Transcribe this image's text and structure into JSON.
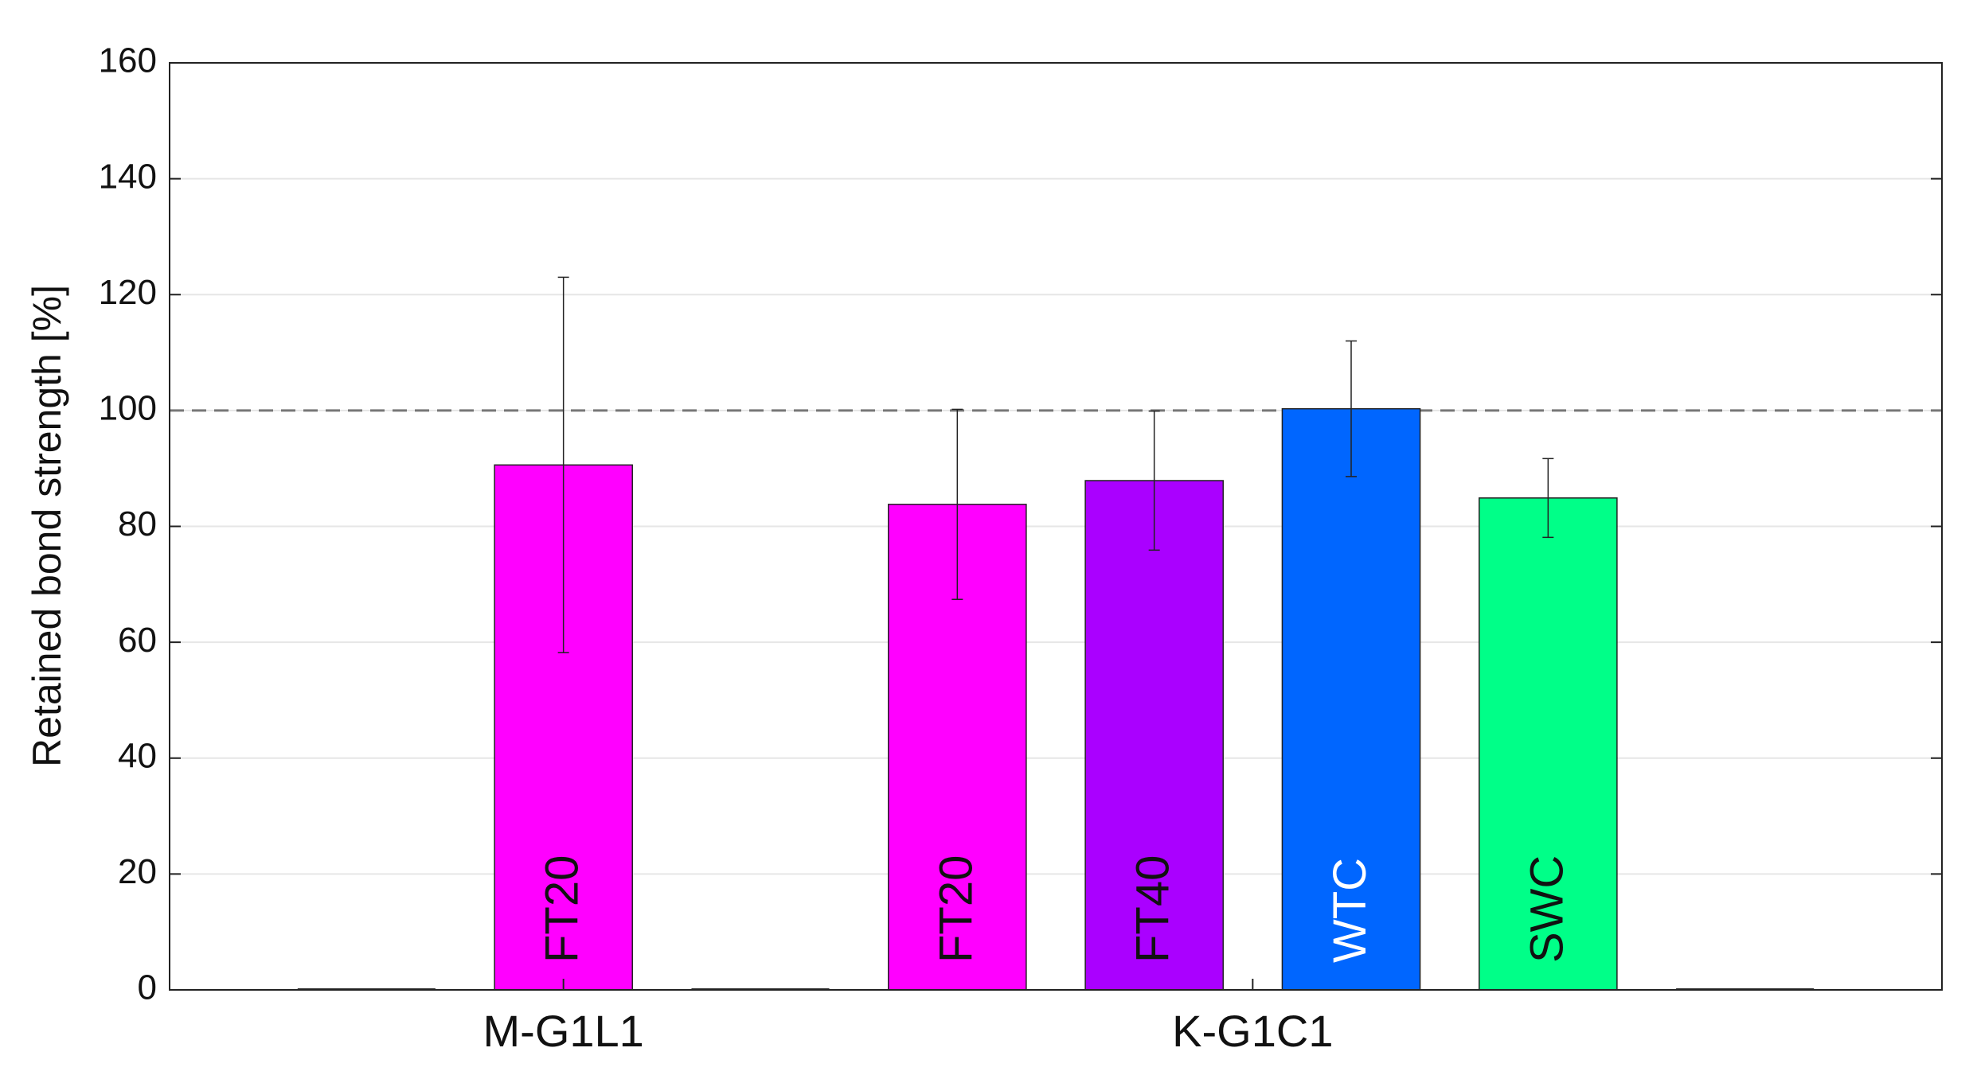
{
  "chart_data": {
    "type": "bar",
    "ylabel": "Retained bond strength [%]",
    "x": [
      1,
      2,
      3,
      4,
      5,
      6,
      7,
      8
    ],
    "bar_labels": [
      null,
      "FT20",
      null,
      "FT20",
      "FT40",
      "WTC",
      "SWC",
      null
    ],
    "values": [
      0,
      90.6,
      0,
      83.8,
      87.9,
      100.3,
      84.9,
      0
    ],
    "errors": [
      null,
      32.4,
      null,
      16.4,
      12,
      11.7,
      6.8,
      null
    ],
    "colors": [
      null,
      "#ff00ff",
      null,
      "#ff00ff",
      "#aa00ff",
      "#0066ff",
      "#00ff88",
      null
    ],
    "label_colors": [
      null,
      "#111111",
      null,
      "#111111",
      "#111111",
      "#ffffff",
      "#111111",
      null
    ],
    "xlim": [
      0,
      9
    ],
    "xticks": [
      {
        "value": 2,
        "label": "M-G1L1"
      },
      {
        "value": 5.5,
        "label": "K-G1C1"
      }
    ],
    "ylim": [
      0,
      160
    ],
    "yticks": [
      0,
      20,
      40,
      60,
      80,
      100,
      120,
      140,
      160
    ],
    "reference_line": 100,
    "grid": true
  }
}
